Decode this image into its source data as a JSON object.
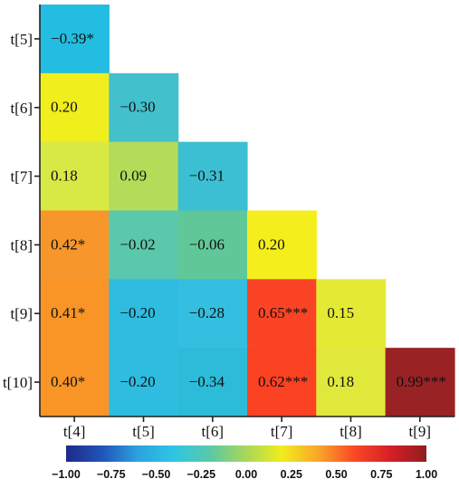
{
  "chart_data": {
    "type": "heatmap",
    "title": "",
    "xlabel": "",
    "ylabel": "",
    "x_labels": [
      "t[4]",
      "t[5]",
      "t[6]",
      "t[7]",
      "t[8]",
      "t[9]"
    ],
    "y_labels": [
      "t[5]",
      "t[6]",
      "t[7]",
      "t[8]",
      "t[9]",
      "t[10]"
    ],
    "matrix": [
      [
        -0.39,
        null,
        null,
        null,
        null,
        null
      ],
      [
        0.2,
        -0.3,
        null,
        null,
        null,
        null
      ],
      [
        0.18,
        0.09,
        -0.31,
        null,
        null,
        null
      ],
      [
        0.42,
        -0.02,
        -0.06,
        0.2,
        null,
        null
      ],
      [
        0.41,
        -0.2,
        -0.28,
        0.65,
        0.15,
        null
      ],
      [
        0.4,
        -0.2,
        -0.34,
        0.62,
        0.18,
        0.99
      ]
    ],
    "labels": [
      [
        "-0.39*",
        null,
        null,
        null,
        null,
        null
      ],
      [
        "0.20",
        "-0.30",
        null,
        null,
        null,
        null
      ],
      [
        "0.18",
        "0.09",
        "-0.31",
        null,
        null,
        null
      ],
      [
        "0.42*",
        "-0.02",
        "-0.06",
        "0.20",
        null,
        null
      ],
      [
        "0.41*",
        "-0.20",
        "-0.28",
        "0.65***",
        "0.15",
        null
      ],
      [
        "0.40*",
        "-0.20",
        "-0.34",
        "0.62***",
        "0.18",
        "0.99***"
      ]
    ],
    "colors": [
      [
        "#22bde0",
        null,
        null,
        null,
        null,
        null
      ],
      [
        "#f0ee1c",
        "#42c0cc",
        null,
        null,
        null,
        null
      ],
      [
        "#d8e844",
        "#b4dc58",
        "#3cbfd2",
        null,
        null,
        null
      ],
      [
        "#f7962a",
        "#5ac8aa",
        "#60c898",
        "#f4ee1c",
        null,
        null
      ],
      [
        "#f89526",
        "#2ebce0",
        "#34bee0",
        "#fb4426",
        "#e4ea34",
        null
      ],
      [
        "#f89526",
        "#2ebce0",
        "#2cbbd8",
        "#fb4223",
        "#e0e83c",
        "#992225"
      ]
    ],
    "colorbar": {
      "range": [
        -1.0,
        1.0
      ],
      "tick_labels": [
        "-1.00",
        "-0.75",
        "-0.50",
        "-0.25",
        "0.00",
        "0.25",
        "0.50",
        "0.75",
        "1.00"
      ],
      "stops": [
        "#1f2a8a",
        "#2154b8",
        "#2ba3df",
        "#2fc6e3",
        "#5ac8a8",
        "#a8d858",
        "#f2ec1c",
        "#f9a62a",
        "#fb4726",
        "#d61f26",
        "#8f1d20"
      ]
    }
  }
}
